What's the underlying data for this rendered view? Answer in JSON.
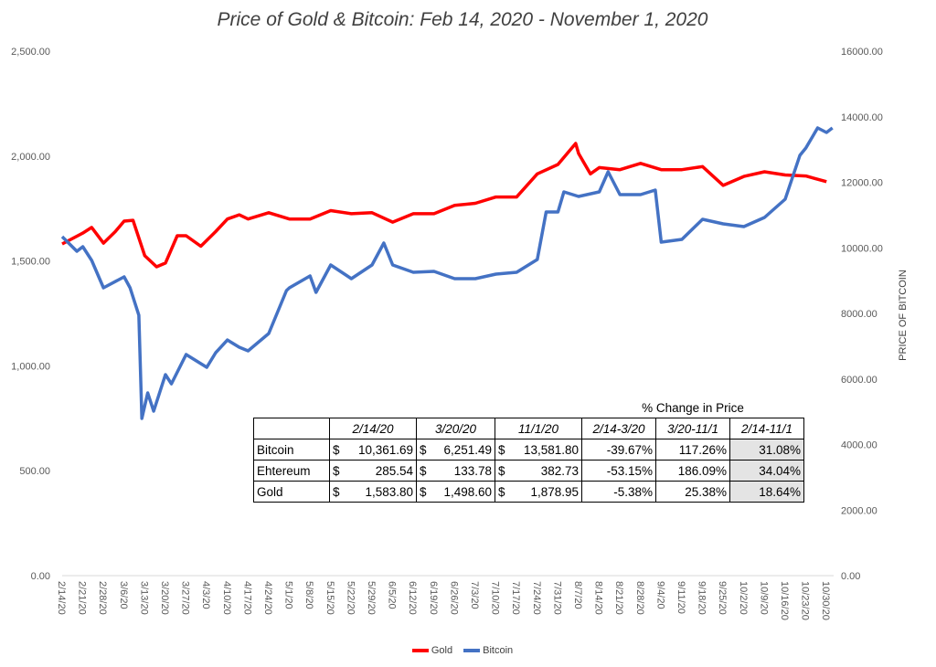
{
  "chart_data": {
    "type": "line",
    "title": "Price of Gold & Bitcoin: Feb 14, 2020 - November 1, 2020",
    "xlabel": "",
    "ylabel_left": "",
    "ylabel_right": "PRICE OF BITCOIN",
    "ylim_left": [
      0,
      2500
    ],
    "ylim_right": [
      0,
      16000
    ],
    "yticks_left": [
      "0.00",
      "500.00",
      "1,000.00",
      "1,500.00",
      "2,000.00",
      "2,500.00"
    ],
    "yticks_right": [
      "0.00",
      "2000.00",
      "4000.00",
      "6000.00",
      "8000.00",
      "10000.00",
      "12000.00",
      "14000.00",
      "16000.00"
    ],
    "xticks": [
      "2/14/20",
      "2/21/20",
      "2/28/20",
      "3/6/20",
      "3/13/20",
      "3/20/20",
      "3/27/20",
      "4/3/20",
      "4/10/20",
      "4/17/20",
      "4/24/20",
      "5/1/20",
      "5/8/20",
      "5/15/20",
      "5/22/20",
      "5/29/20",
      "6/5/20",
      "6/12/20",
      "6/19/20",
      "6/26/20",
      "7/3/20",
      "7/10/20",
      "7/17/20",
      "7/24/20",
      "7/31/20",
      "8/7/20",
      "8/14/20",
      "8/21/20",
      "8/28/20",
      "9/4/20",
      "9/11/20",
      "9/18/20",
      "9/25/20",
      "10/2/20",
      "10/9/20",
      "10/16/20",
      "10/23/20",
      "10/30/20"
    ],
    "legend": "bottom",
    "grid": false,
    "series": [
      {
        "name": "Gold",
        "axis": "left",
        "color": "#ff0000",
        "points": [
          [
            "2/14/20",
            1581
          ],
          [
            "2/21/20",
            1633
          ],
          [
            "2/24/20",
            1660
          ],
          [
            "2/28/20",
            1585
          ],
          [
            "3/3/20",
            1640
          ],
          [
            "3/6/20",
            1690
          ],
          [
            "3/9/20",
            1694
          ],
          [
            "3/13/20",
            1525
          ],
          [
            "3/17/20",
            1472
          ],
          [
            "3/20/20",
            1490
          ],
          [
            "3/24/20",
            1620
          ],
          [
            "3/27/20",
            1620
          ],
          [
            "4/1/20",
            1570
          ],
          [
            "4/6/20",
            1640
          ],
          [
            "4/10/20",
            1700
          ],
          [
            "4/14/20",
            1720
          ],
          [
            "4/17/20",
            1700
          ],
          [
            "4/24/20",
            1730
          ],
          [
            "5/1/20",
            1700
          ],
          [
            "5/8/20",
            1700
          ],
          [
            "5/15/20",
            1740
          ],
          [
            "5/22/20",
            1725
          ],
          [
            "5/29/20",
            1730
          ],
          [
            "6/5/20",
            1685
          ],
          [
            "6/12/20",
            1725
          ],
          [
            "6/19/20",
            1725
          ],
          [
            "6/26/20",
            1765
          ],
          [
            "7/3/20",
            1775
          ],
          [
            "7/10/20",
            1805
          ],
          [
            "7/17/20",
            1805
          ],
          [
            "7/24/20",
            1915
          ],
          [
            "7/31/20",
            1960
          ],
          [
            "8/6/20",
            2060
          ],
          [
            "8/7/20",
            2012
          ],
          [
            "8/11/20",
            1915
          ],
          [
            "8/14/20",
            1945
          ],
          [
            "8/21/20",
            1935
          ],
          [
            "8/28/20",
            1965
          ],
          [
            "9/4/20",
            1935
          ],
          [
            "9/11/20",
            1935
          ],
          [
            "9/18/20",
            1950
          ],
          [
            "9/25/20",
            1860
          ],
          [
            "10/2/20",
            1903
          ],
          [
            "10/9/20",
            1925
          ],
          [
            "10/16/20",
            1910
          ],
          [
            "10/23/20",
            1905
          ],
          [
            "10/30/20",
            1878
          ]
        ]
      },
      {
        "name": "Bitcoin",
        "axis": "right",
        "color": "#4472c4",
        "points": [
          [
            "2/14/20",
            10341
          ],
          [
            "2/19/20",
            9895
          ],
          [
            "2/21/20",
            10035
          ],
          [
            "2/24/20",
            9617
          ],
          [
            "2/28/20",
            8780
          ],
          [
            "3/6/20",
            9115
          ],
          [
            "3/8/20",
            8780
          ],
          [
            "3/11/20",
            7944
          ],
          [
            "3/12/20",
            4795
          ],
          [
            "3/14/20",
            5575
          ],
          [
            "3/16/20",
            5017
          ],
          [
            "3/20/20",
            6132
          ],
          [
            "3/22/20",
            5850
          ],
          [
            "3/27/20",
            6745
          ],
          [
            "4/3/20",
            6355
          ],
          [
            "4/6/20",
            6800
          ],
          [
            "4/10/20",
            7190
          ],
          [
            "4/14/20",
            6968
          ],
          [
            "4/17/20",
            6857
          ],
          [
            "4/24/20",
            7387
          ],
          [
            "4/30/20",
            8697
          ],
          [
            "5/1/20",
            8780
          ],
          [
            "5/8/20",
            9143
          ],
          [
            "5/10/20",
            8641
          ],
          [
            "5/15/20",
            9477
          ],
          [
            "5/22/20",
            9059
          ],
          [
            "5/29/20",
            9477
          ],
          [
            "6/2/20",
            10146
          ],
          [
            "6/5/20",
            9477
          ],
          [
            "6/12/20",
            9254
          ],
          [
            "6/19/20",
            9282
          ],
          [
            "6/26/20",
            9059
          ],
          [
            "7/3/20",
            9059
          ],
          [
            "7/10/20",
            9198
          ],
          [
            "7/17/20",
            9254
          ],
          [
            "7/24/20",
            9645
          ],
          [
            "7/27/20",
            11094
          ],
          [
            "7/31/20",
            11094
          ],
          [
            "8/2/20",
            11707
          ],
          [
            "8/7/20",
            11568
          ],
          [
            "8/14/20",
            11707
          ],
          [
            "8/17/20",
            12320
          ],
          [
            "8/21/20",
            11623
          ],
          [
            "8/28/20",
            11623
          ],
          [
            "9/2/20",
            11763
          ],
          [
            "9/4/20",
            10174
          ],
          [
            "9/11/20",
            10258
          ],
          [
            "9/18/20",
            10871
          ],
          [
            "9/25/20",
            10732
          ],
          [
            "10/2/20",
            10648
          ],
          [
            "10/9/20",
            10927
          ],
          [
            "10/16/20",
            11484
          ],
          [
            "10/21/20",
            12822
          ],
          [
            "10/23/20",
            13045
          ],
          [
            "10/27/20",
            13659
          ],
          [
            "10/30/20",
            13519
          ],
          [
            "11/1/20",
            13659
          ]
        ]
      }
    ]
  },
  "table": {
    "group_header": "% Change in Price",
    "columns": [
      "2/14/20",
      "3/20/20",
      "11/1/20",
      "2/14-3/20",
      "3/20-11/1",
      "2/14-11/1"
    ],
    "rows": [
      {
        "label": "Bitcoin",
        "prices": [
          "10,361.69",
          "6,251.49",
          "13,581.80"
        ],
        "changes": [
          "-39.67%",
          "117.26%",
          "31.08%"
        ]
      },
      {
        "label": "Ehtereum",
        "prices": [
          "285.54",
          "133.78",
          "382.73"
        ],
        "changes": [
          "-53.15%",
          "186.09%",
          "34.04%"
        ]
      },
      {
        "label": "Gold",
        "prices": [
          "1,583.80",
          "1,498.60",
          "1,878.95"
        ],
        "changes": [
          "-5.38%",
          "25.38%",
          "18.64%"
        ]
      }
    ],
    "currency": "$"
  }
}
